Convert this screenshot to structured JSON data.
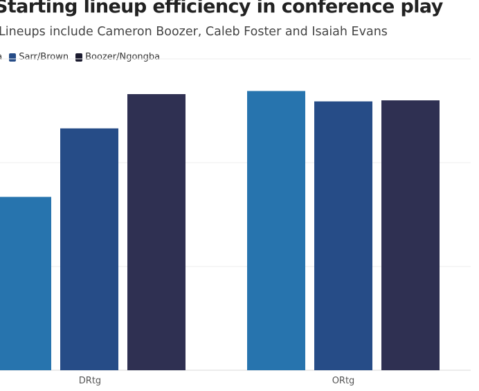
{
  "chart_data": {
    "type": "bar",
    "title": "Starting lineup efficiency in conference play",
    "subtitle": "Lineups include Cameron Boozer, Caleb Foster and Isaiah Evans",
    "categories": [
      "DRtg",
      "ORtg"
    ],
    "series": [
      {
        "name": "Sarr/Ngongba",
        "color": "#2774ae",
        "values": [
          83.5,
          134.5
        ]
      },
      {
        "name": "Sarr/Brown",
        "color": "#264c87",
        "values": [
          116.5,
          129.5
        ]
      },
      {
        "name": "Boozer/Ngongba",
        "color": "#2f3052",
        "values": [
          133,
          130
        ]
      }
    ],
    "legend_visible_labels": [
      "ba",
      "Sarr/Brown",
      "Boozer/Ngongba"
    ],
    "legend_colors": [
      "#2774ae",
      "#264c87",
      "#1a1a2e"
    ],
    "ylim": [
      0,
      150
    ],
    "gridlines": [
      0,
      50,
      100,
      150
    ],
    "xlabel": "",
    "ylabel": ""
  }
}
